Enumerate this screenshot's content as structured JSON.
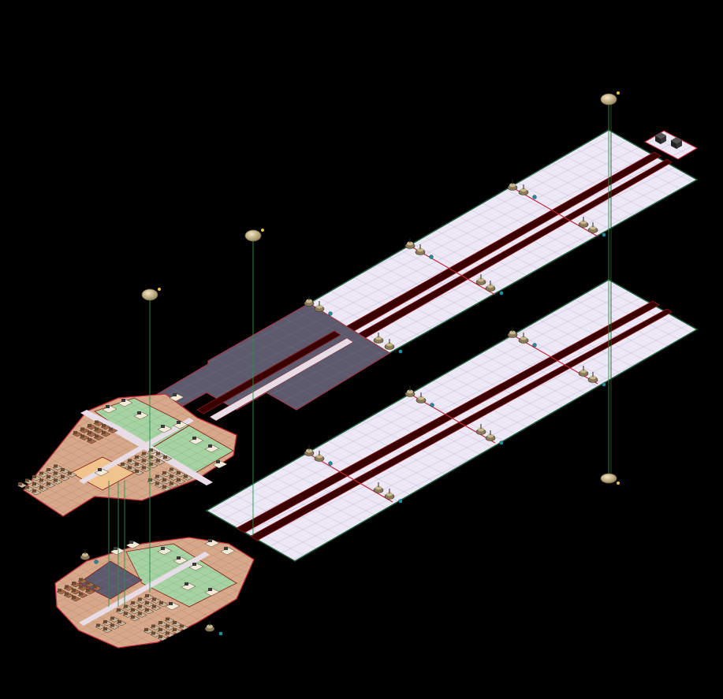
{
  "scene": {
    "background": "#000000",
    "view": "isometric-station-map",
    "colors": {
      "floor_white": "#ece8f6",
      "floor_grid": "#c9bfe0",
      "floor_edge": "#1f5f3a",
      "floor_dark": "#5c5a6c",
      "floor_dark_edge": "#9c3a4a",
      "floor_tan": "#d7a98a",
      "floor_tan_grid": "#b98a6e",
      "floor_green": "#a7d3a3",
      "floor_green_grid": "#83b483",
      "floor_pink": "#d29aa6",
      "rail": "#3a0000",
      "rail_edge": "#8b1a1a",
      "orb": "#cbb68c",
      "beam": "#2f8f4a",
      "furniture": "#a86a4a",
      "seat": "#c8b8a0"
    },
    "icons": [
      "orb-beacon-icon",
      "server-crate-icon",
      "turret-icon",
      "seat-icon",
      "desk-icon"
    ]
  }
}
